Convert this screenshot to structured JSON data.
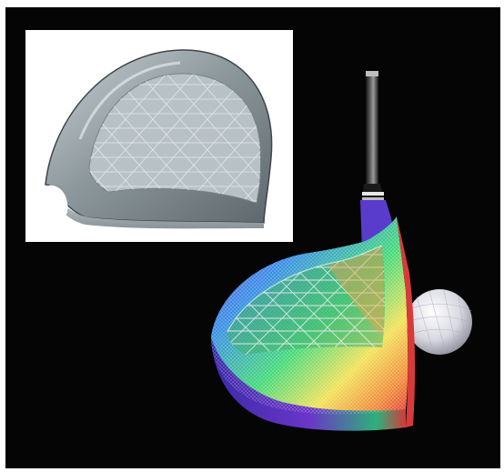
{
  "scene": {
    "background": "#050505",
    "border": "#ffffff",
    "inset": {
      "subject": "driver-head-crown-mesh",
      "background": "#ffffff",
      "shell_color": "#9aa6ab",
      "mesh_color": "#d9e1e3"
    },
    "main": {
      "subject": "golf-driver-with-ball",
      "shaft_color": "#2a2a2a",
      "mesh_colors": [
        "#6b2fd6",
        "#3a8fe6",
        "#3fe07a",
        "#f2e25a",
        "#f08a3a",
        "#e23b3b"
      ],
      "ball_color": "#e8e8ee"
    }
  }
}
